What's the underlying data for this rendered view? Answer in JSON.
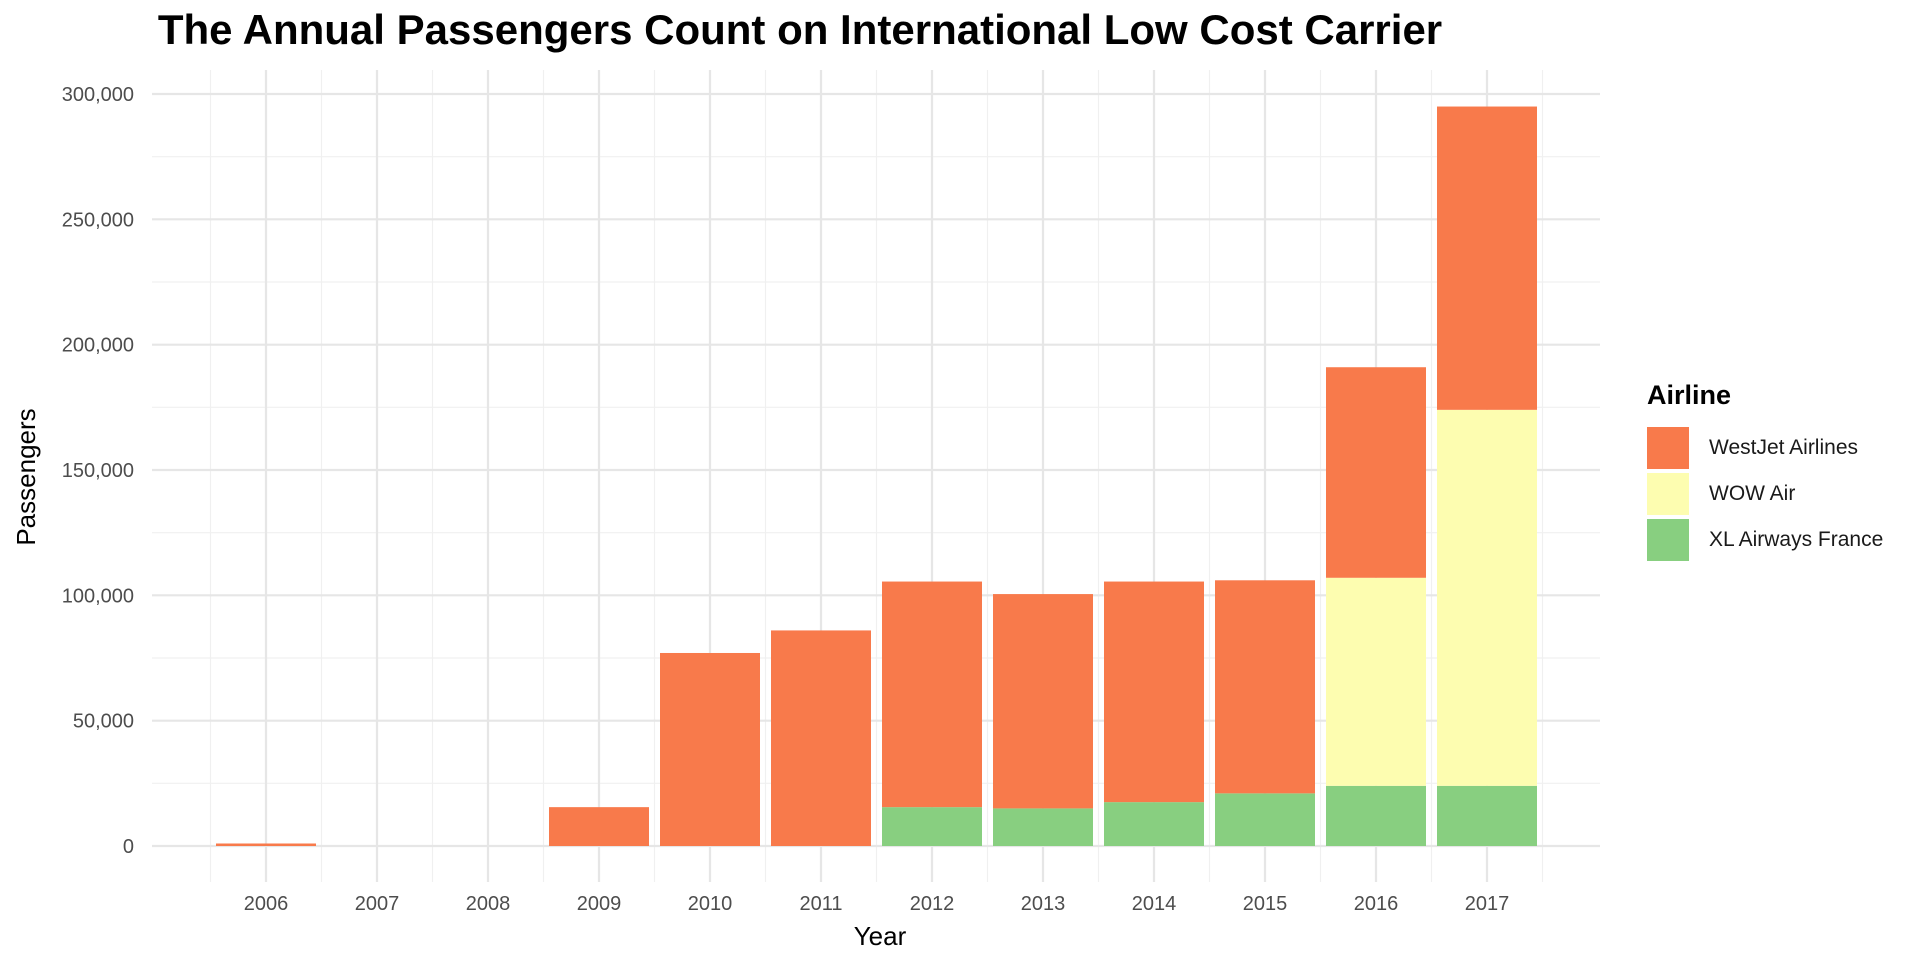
{
  "chart_data": {
    "type": "bar",
    "stacked": true,
    "title": "The Annual Passengers Count on International Low Cost Carrier",
    "xlabel": "Year",
    "ylabel": "Passengers",
    "categories": [
      "2006",
      "2007",
      "2008",
      "2009",
      "2010",
      "2011",
      "2012",
      "2013",
      "2014",
      "2015",
      "2016",
      "2017"
    ],
    "ylim": [
      0,
      300000
    ],
    "yticks": [
      0,
      50000,
      100000,
      150000,
      200000,
      250000,
      300000
    ],
    "ytick_labels": [
      "0",
      "50,000",
      "100,000",
      "150,000",
      "200,000",
      "250,000",
      "300,000"
    ],
    "grid": true,
    "legend_title": "Airline",
    "legend_position": "right",
    "series": [
      {
        "name": "XL Airways France",
        "color": "#88cf80",
        "values": [
          0,
          0,
          0,
          0,
          0,
          0,
          15500,
          15000,
          17500,
          21000,
          24000,
          24000
        ]
      },
      {
        "name": "WOW Air",
        "color": "#fdfdb0",
        "values": [
          0,
          0,
          0,
          0,
          0,
          0,
          0,
          0,
          0,
          0,
          83000,
          150000
        ]
      },
      {
        "name": "WestJet Airlines",
        "color": "#f87a4b",
        "values": [
          1000,
          0,
          0,
          15500,
          77000,
          86000,
          90000,
          85500,
          88000,
          85000,
          84000,
          121000
        ]
      }
    ],
    "legend_order": [
      "WestJet Airlines",
      "WOW Air",
      "XL Airways France"
    ]
  }
}
